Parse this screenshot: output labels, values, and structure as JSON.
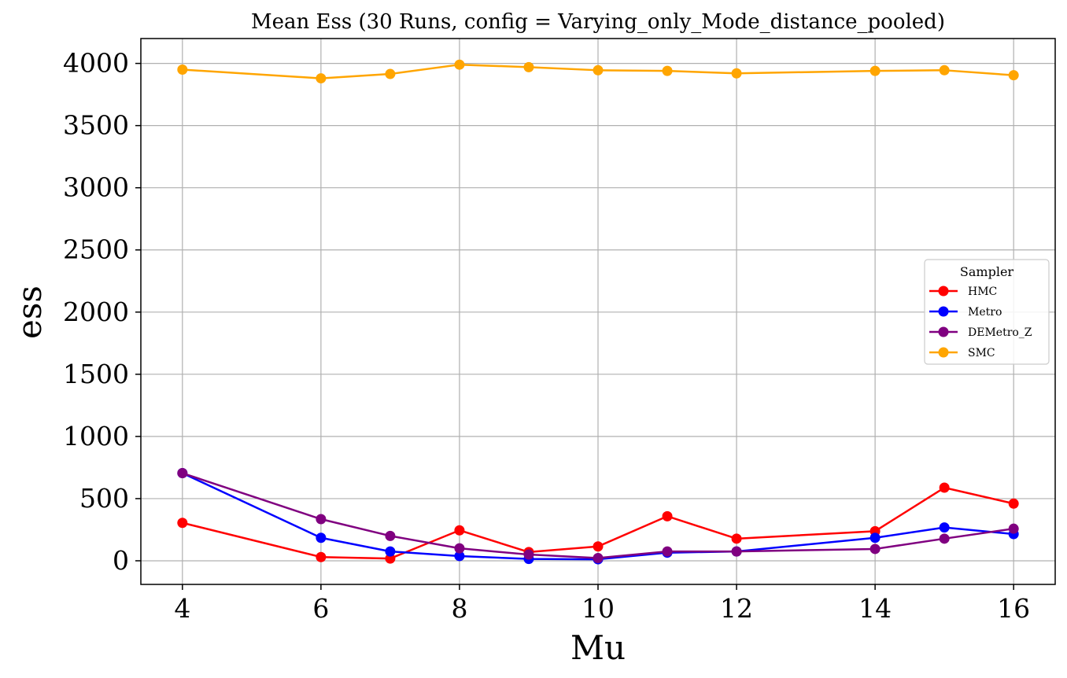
{
  "chart_data": {
    "type": "line",
    "title": "Mean Ess (30 Runs, config = Varying_only_Mode_distance_pooled)",
    "xlabel": "Mu",
    "ylabel": "ess",
    "x": [
      4,
      6,
      7,
      8,
      9,
      10,
      11,
      12,
      14,
      15,
      16
    ],
    "xlim": [
      3.4,
      16.6
    ],
    "ylim": [
      -190,
      4200
    ],
    "xticks": [
      4,
      6,
      8,
      10,
      12,
      14,
      16
    ],
    "yticks": [
      0,
      500,
      1000,
      1500,
      2000,
      2500,
      3000,
      3500,
      4000
    ],
    "grid": true,
    "legend_title": "Sampler",
    "legend_position": "center-right",
    "series": [
      {
        "name": "HMC",
        "color": "#ff0000",
        "values": [
          305,
          30,
          18,
          245,
          70,
          115,
          358,
          178,
          238,
          588,
          460
        ]
      },
      {
        "name": "Metro",
        "color": "#0000ff",
        "values": [
          705,
          185,
          75,
          38,
          15,
          12,
          65,
          75,
          185,
          268,
          215
        ]
      },
      {
        "name": "DEMetro_Z",
        "color": "#800080",
        "values": [
          705,
          335,
          200,
          100,
          50,
          22,
          75,
          75,
          95,
          178,
          258
        ]
      },
      {
        "name": "SMC",
        "color": "#ffa500",
        "values": [
          3950,
          3880,
          3915,
          3990,
          3970,
          3945,
          3940,
          3920,
          3940,
          3945,
          3905
        ]
      }
    ]
  }
}
